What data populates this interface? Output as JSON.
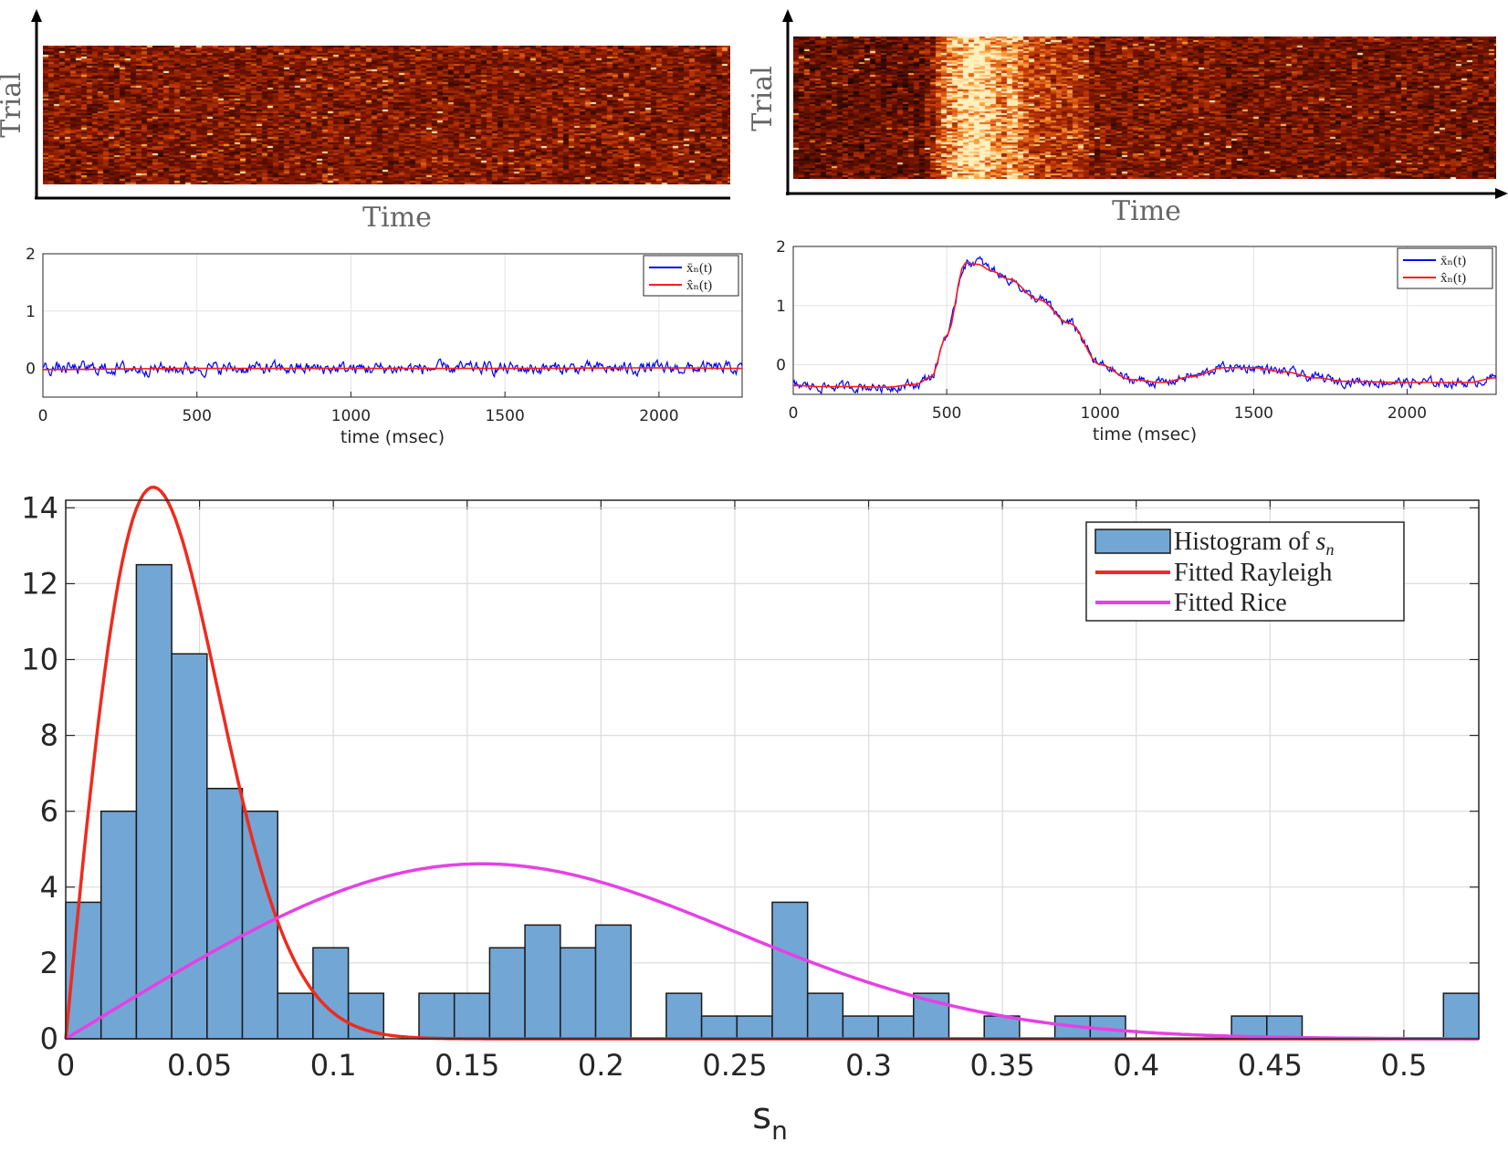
{
  "colors": {
    "heat_low": "#000000",
    "heat_mid": "#b02a05",
    "heat_high": "#ffd27a",
    "avg_trace": "#0000ff",
    "fit_trace": "#ff1a1a",
    "hist_fill": "#72a6d4",
    "rayleigh": "#ee2b1e",
    "rice": "#e640e6"
  },
  "raster_left": {
    "ylabel": "Trial",
    "xlabel": "Time"
  },
  "raster_right": {
    "ylabel": "Trial",
    "xlabel": "Time"
  },
  "chart_data": [
    {
      "type": "line",
      "panel": "top-left",
      "xlabel": "time (msec)",
      "ylabel": "",
      "xlim": [
        0,
        2270
      ],
      "ylim": [
        -0.5,
        2
      ],
      "xticks": [
        0,
        500,
        1000,
        1500,
        2000
      ],
      "yticks": [
        0,
        1,
        2
      ],
      "grid": true,
      "legend_position": "top-right",
      "series": [
        {
          "name": "x̄ₙ(t)",
          "color": "#0000ff",
          "shape": "noise",
          "x": [
            0,
            2270
          ],
          "y": [
            0,
            0
          ],
          "noise_amplitude": 0.08
        },
        {
          "name": "x̂ₙ(t)",
          "color": "#ff1a1a",
          "shape": "smooth",
          "x": [
            0,
            500,
            1000,
            1500,
            2000,
            2270
          ],
          "y": [
            -0.02,
            0.0,
            0.0,
            0.0,
            0.01,
            0.0
          ]
        }
      ]
    },
    {
      "type": "line",
      "panel": "top-right",
      "xlabel": "time (msec)",
      "ylabel": "",
      "xlim": [
        0,
        2290
      ],
      "ylim": [
        -0.5,
        2
      ],
      "xticks": [
        0,
        500,
        1000,
        1500,
        2000
      ],
      "yticks": [
        0,
        1,
        2
      ],
      "grid": true,
      "legend_position": "top-right",
      "series": [
        {
          "name": "x̄ₙ(t)",
          "color": "#0000ff",
          "shape": "noise",
          "x": [
            0,
            100,
            200,
            300,
            400,
            450,
            500,
            560,
            600,
            650,
            700,
            800,
            900,
            1000,
            1100,
            1200,
            1300,
            1400,
            1500,
            1600,
            1700,
            1800,
            2000,
            2200,
            2290
          ],
          "y": [
            -0.35,
            -0.37,
            -0.37,
            -0.38,
            -0.33,
            -0.2,
            0.5,
            1.7,
            1.75,
            1.6,
            1.45,
            1.1,
            0.7,
            0.0,
            -0.25,
            -0.3,
            -0.2,
            -0.05,
            -0.05,
            -0.12,
            -0.22,
            -0.28,
            -0.3,
            -0.3,
            -0.22
          ],
          "noise_amplitude": 0.06
        },
        {
          "name": "x̂ₙ(t)",
          "color": "#ff1a1a",
          "shape": "smooth",
          "x": [
            0,
            100,
            200,
            300,
            400,
            450,
            500,
            560,
            600,
            650,
            700,
            800,
            900,
            1000,
            1100,
            1200,
            1300,
            1400,
            1500,
            1600,
            1700,
            1800,
            2000,
            2200,
            2290
          ],
          "y": [
            -0.35,
            -0.37,
            -0.37,
            -0.38,
            -0.33,
            -0.2,
            0.5,
            1.72,
            1.7,
            1.58,
            1.45,
            1.1,
            0.7,
            0.0,
            -0.25,
            -0.3,
            -0.2,
            -0.05,
            -0.05,
            -0.12,
            -0.22,
            -0.28,
            -0.3,
            -0.3,
            -0.22
          ]
        }
      ]
    },
    {
      "type": "bar",
      "panel": "bottom",
      "xlabel": "s_n",
      "ylabel": "",
      "xlim": [
        0,
        0.528
      ],
      "ylim": [
        0,
        14.2
      ],
      "xticks": [
        0,
        0.05,
        0.1,
        0.15,
        0.2,
        0.25,
        0.3,
        0.35,
        0.4,
        0.45,
        0.5
      ],
      "yticks": [
        0,
        2,
        4,
        6,
        8,
        10,
        12,
        14
      ],
      "grid": true,
      "legend_position": "top-right",
      "bin_width": 0.0132,
      "bins": [
        {
          "x": 0.0,
          "value": 3.6
        },
        {
          "x": 0.0132,
          "value": 6.0
        },
        {
          "x": 0.0264,
          "value": 12.5
        },
        {
          "x": 0.0396,
          "value": 10.15
        },
        {
          "x": 0.0528,
          "value": 6.6
        },
        {
          "x": 0.066,
          "value": 6.0
        },
        {
          "x": 0.0792,
          "value": 1.2
        },
        {
          "x": 0.0924,
          "value": 2.4
        },
        {
          "x": 0.1056,
          "value": 1.2
        },
        {
          "x": 0.1188,
          "value": 0
        },
        {
          "x": 0.132,
          "value": 1.2
        },
        {
          "x": 0.1452,
          "value": 1.2
        },
        {
          "x": 0.1584,
          "value": 2.4
        },
        {
          "x": 0.1716,
          "value": 3.0
        },
        {
          "x": 0.1848,
          "value": 2.4
        },
        {
          "x": 0.198,
          "value": 3.0
        },
        {
          "x": 0.2112,
          "value": 0
        },
        {
          "x": 0.2244,
          "value": 1.2
        },
        {
          "x": 0.2376,
          "value": 0.6
        },
        {
          "x": 0.2508,
          "value": 0.6
        },
        {
          "x": 0.264,
          "value": 3.6
        },
        {
          "x": 0.2772,
          "value": 1.2
        },
        {
          "x": 0.2904,
          "value": 0.6
        },
        {
          "x": 0.3036,
          "value": 0.6
        },
        {
          "x": 0.3168,
          "value": 1.2
        },
        {
          "x": 0.33,
          "value": 0
        },
        {
          "x": 0.3432,
          "value": 0.6
        },
        {
          "x": 0.3564,
          "value": 0
        },
        {
          "x": 0.3696,
          "value": 0.6
        },
        {
          "x": 0.3828,
          "value": 0.6
        },
        {
          "x": 0.396,
          "value": 0
        },
        {
          "x": 0.4092,
          "value": 0
        },
        {
          "x": 0.4224,
          "value": 0
        },
        {
          "x": 0.4356,
          "value": 0.6
        },
        {
          "x": 0.4488,
          "value": 0.6
        },
        {
          "x": 0.462,
          "value": 0
        },
        {
          "x": 0.4752,
          "value": 0
        },
        {
          "x": 0.4884,
          "value": 0
        },
        {
          "x": 0.5016,
          "value": 0
        },
        {
          "x": 0.5148,
          "value": 1.2
        }
      ],
      "series": [
        {
          "name": "Histogram of s_n",
          "kind": "histogram",
          "color": "#72a6d4"
        },
        {
          "name": "Fitted Rayleigh",
          "kind": "rayleigh",
          "color": "#ee2b1e",
          "sigma": 0.0327,
          "scale": 0.7842
        },
        {
          "name": "Fitted Rice",
          "kind": "rice",
          "color": "#e640e6",
          "nu": 0.13,
          "sigma": 0.1,
          "scale": 1.0
        }
      ]
    }
  ],
  "legend_bottom": {
    "hist_prefix": "Histogram of ",
    "hist_var": "s",
    "hist_sub": "n",
    "rayleigh": "Fitted Rayleigh",
    "rice": "Fitted Rice"
  },
  "legend_top": {
    "avg": "x̄ₙ(t)",
    "fit": "x̂ₙ(t)"
  },
  "bottom_xlabel": {
    "main": "s",
    "sub": "n"
  }
}
